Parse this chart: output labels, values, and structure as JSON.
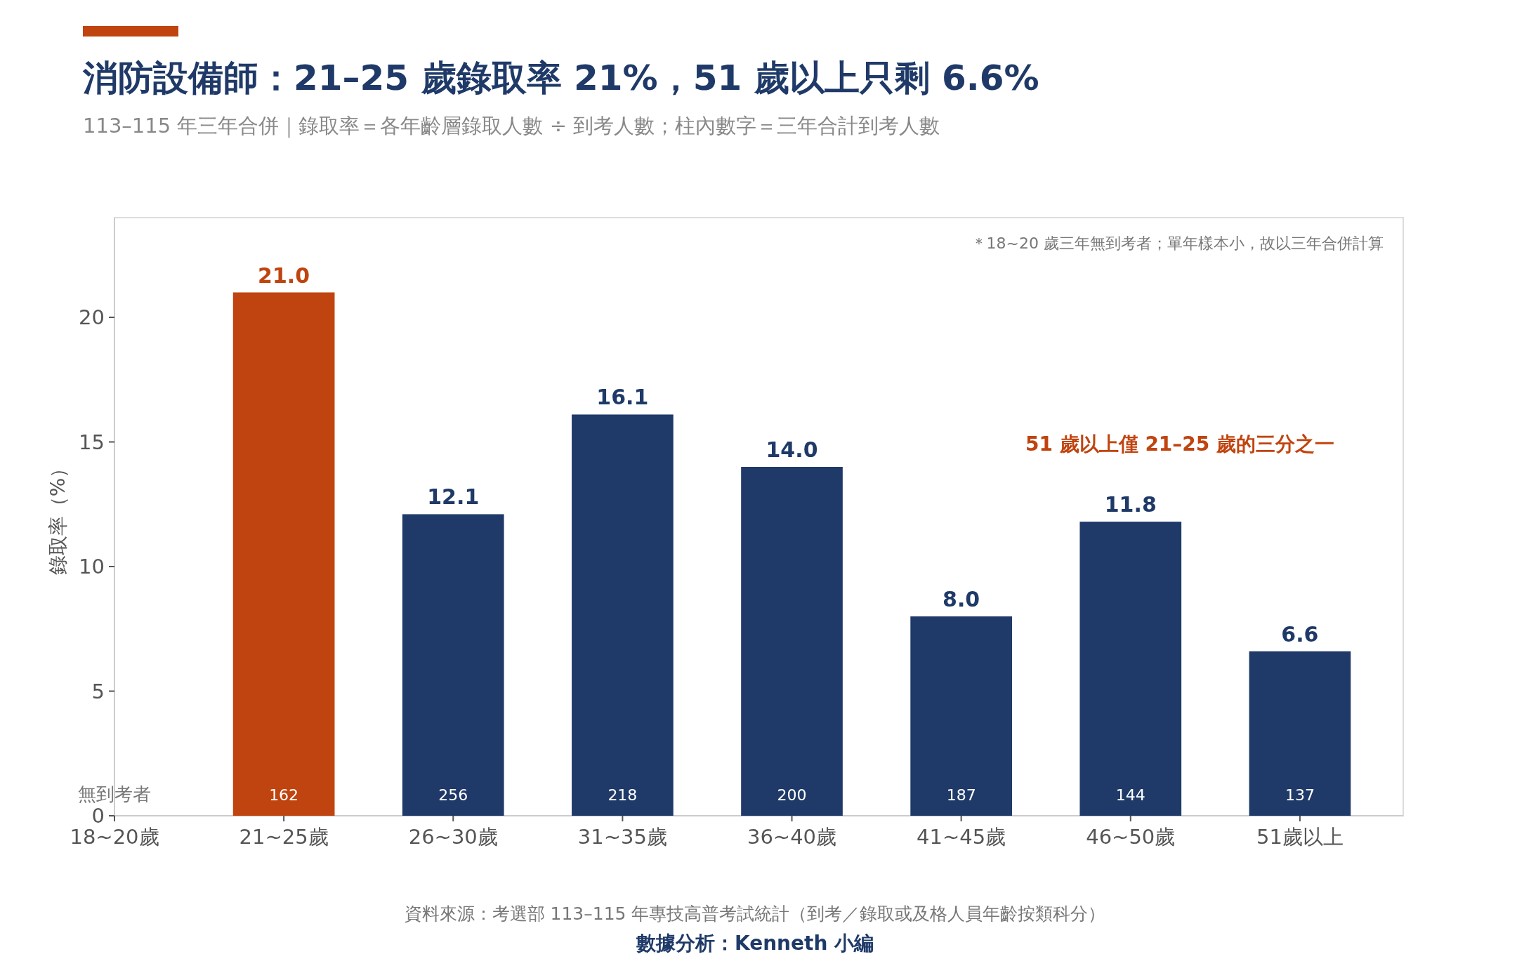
{
  "chart_data": {
    "type": "bar",
    "title": "消防設備師：21–25 歲錄取率 21%，51 歲以上只剩 6.6%",
    "subtitle": "113–115 年三年合併｜錄取率＝各年齡層錄取人數 ÷ 到考人數；柱內數字＝三年合計到考人數",
    "ylabel": "錄取率（%）",
    "categories": [
      "18~20歲",
      "21~25歲",
      "26~30歲",
      "31~35歲",
      "36~40歲",
      "41~45歲",
      "46~50歲",
      "51歲以上"
    ],
    "values": [
      null,
      21.0,
      12.1,
      16.1,
      14.0,
      8.0,
      11.8,
      6.6
    ],
    "colors": [
      null,
      "#c0440f",
      "#1f3a68",
      "#1f3a68",
      "#1f3a68",
      "#1f3a68",
      "#1f3a68",
      "#1f3a68"
    ],
    "ylim": [
      0,
      24
    ],
    "yticks": [
      0,
      5,
      10,
      15,
      20
    ],
    "value_labels": [
      null,
      "21.0",
      "12.1",
      "16.1",
      "14.0",
      "8.0",
      "11.8",
      "6.6"
    ],
    "grid": false,
    "annotations": [
      "＊18~20 歲三年無到考者；單年樣本小，故以三年合併計算",
      "51 歲以上僅 21–25 歲的三分之一",
      "資料來源：考選部 113–115 年專技高普考試統計（到考／錄取或及格人員年齡按類科分）",
      "數據分析：Kenneth 小編",
      "無到考者",
      {
        "text": "162",
        "x": "21~25歲",
        "y": 0
      },
      {
        "text": "256",
        "x": "26~30歲",
        "y": 0
      },
      {
        "text": "218",
        "x": "31~35歲",
        "y": 0
      },
      {
        "text": "200",
        "x": "36~40歲",
        "y": 0
      },
      {
        "text": "187",
        "x": "41~45歲",
        "y": 0
      },
      {
        "text": "144",
        "x": "46~50歲",
        "y": 0
      },
      {
        "text": "137",
        "x": "51歲以上",
        "y": 0
      }
    ]
  }
}
